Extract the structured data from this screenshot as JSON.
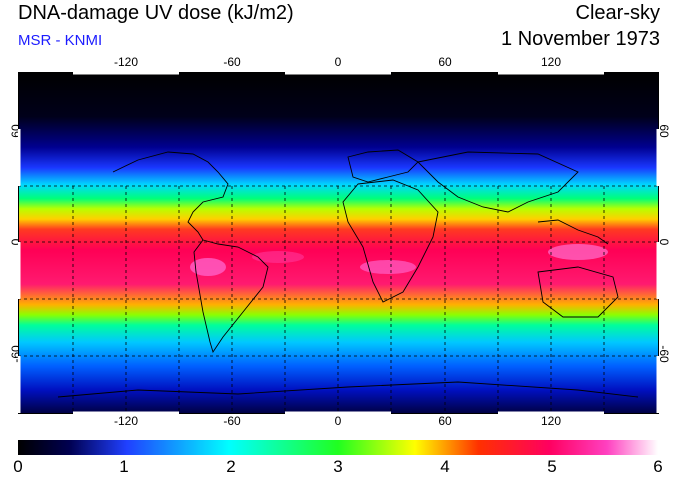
{
  "header": {
    "title": "DNA-damage UV dose (kJ/m2)",
    "subtitle": "MSR - KNMI",
    "scenario": "Clear-sky",
    "date": "1 November 1973"
  },
  "axes": {
    "lon_ticks": [
      "-120",
      "-60",
      "0",
      "60",
      "120"
    ],
    "lat_ticks": [
      "60",
      "0",
      "-60"
    ]
  },
  "colorbar": {
    "labels": [
      "0",
      "1",
      "2",
      "3",
      "4",
      "5",
      "6"
    ],
    "min": 0,
    "max": 6
  },
  "colors": {
    "subtitle": "#1c1cff",
    "background": "#ffffff"
  }
}
